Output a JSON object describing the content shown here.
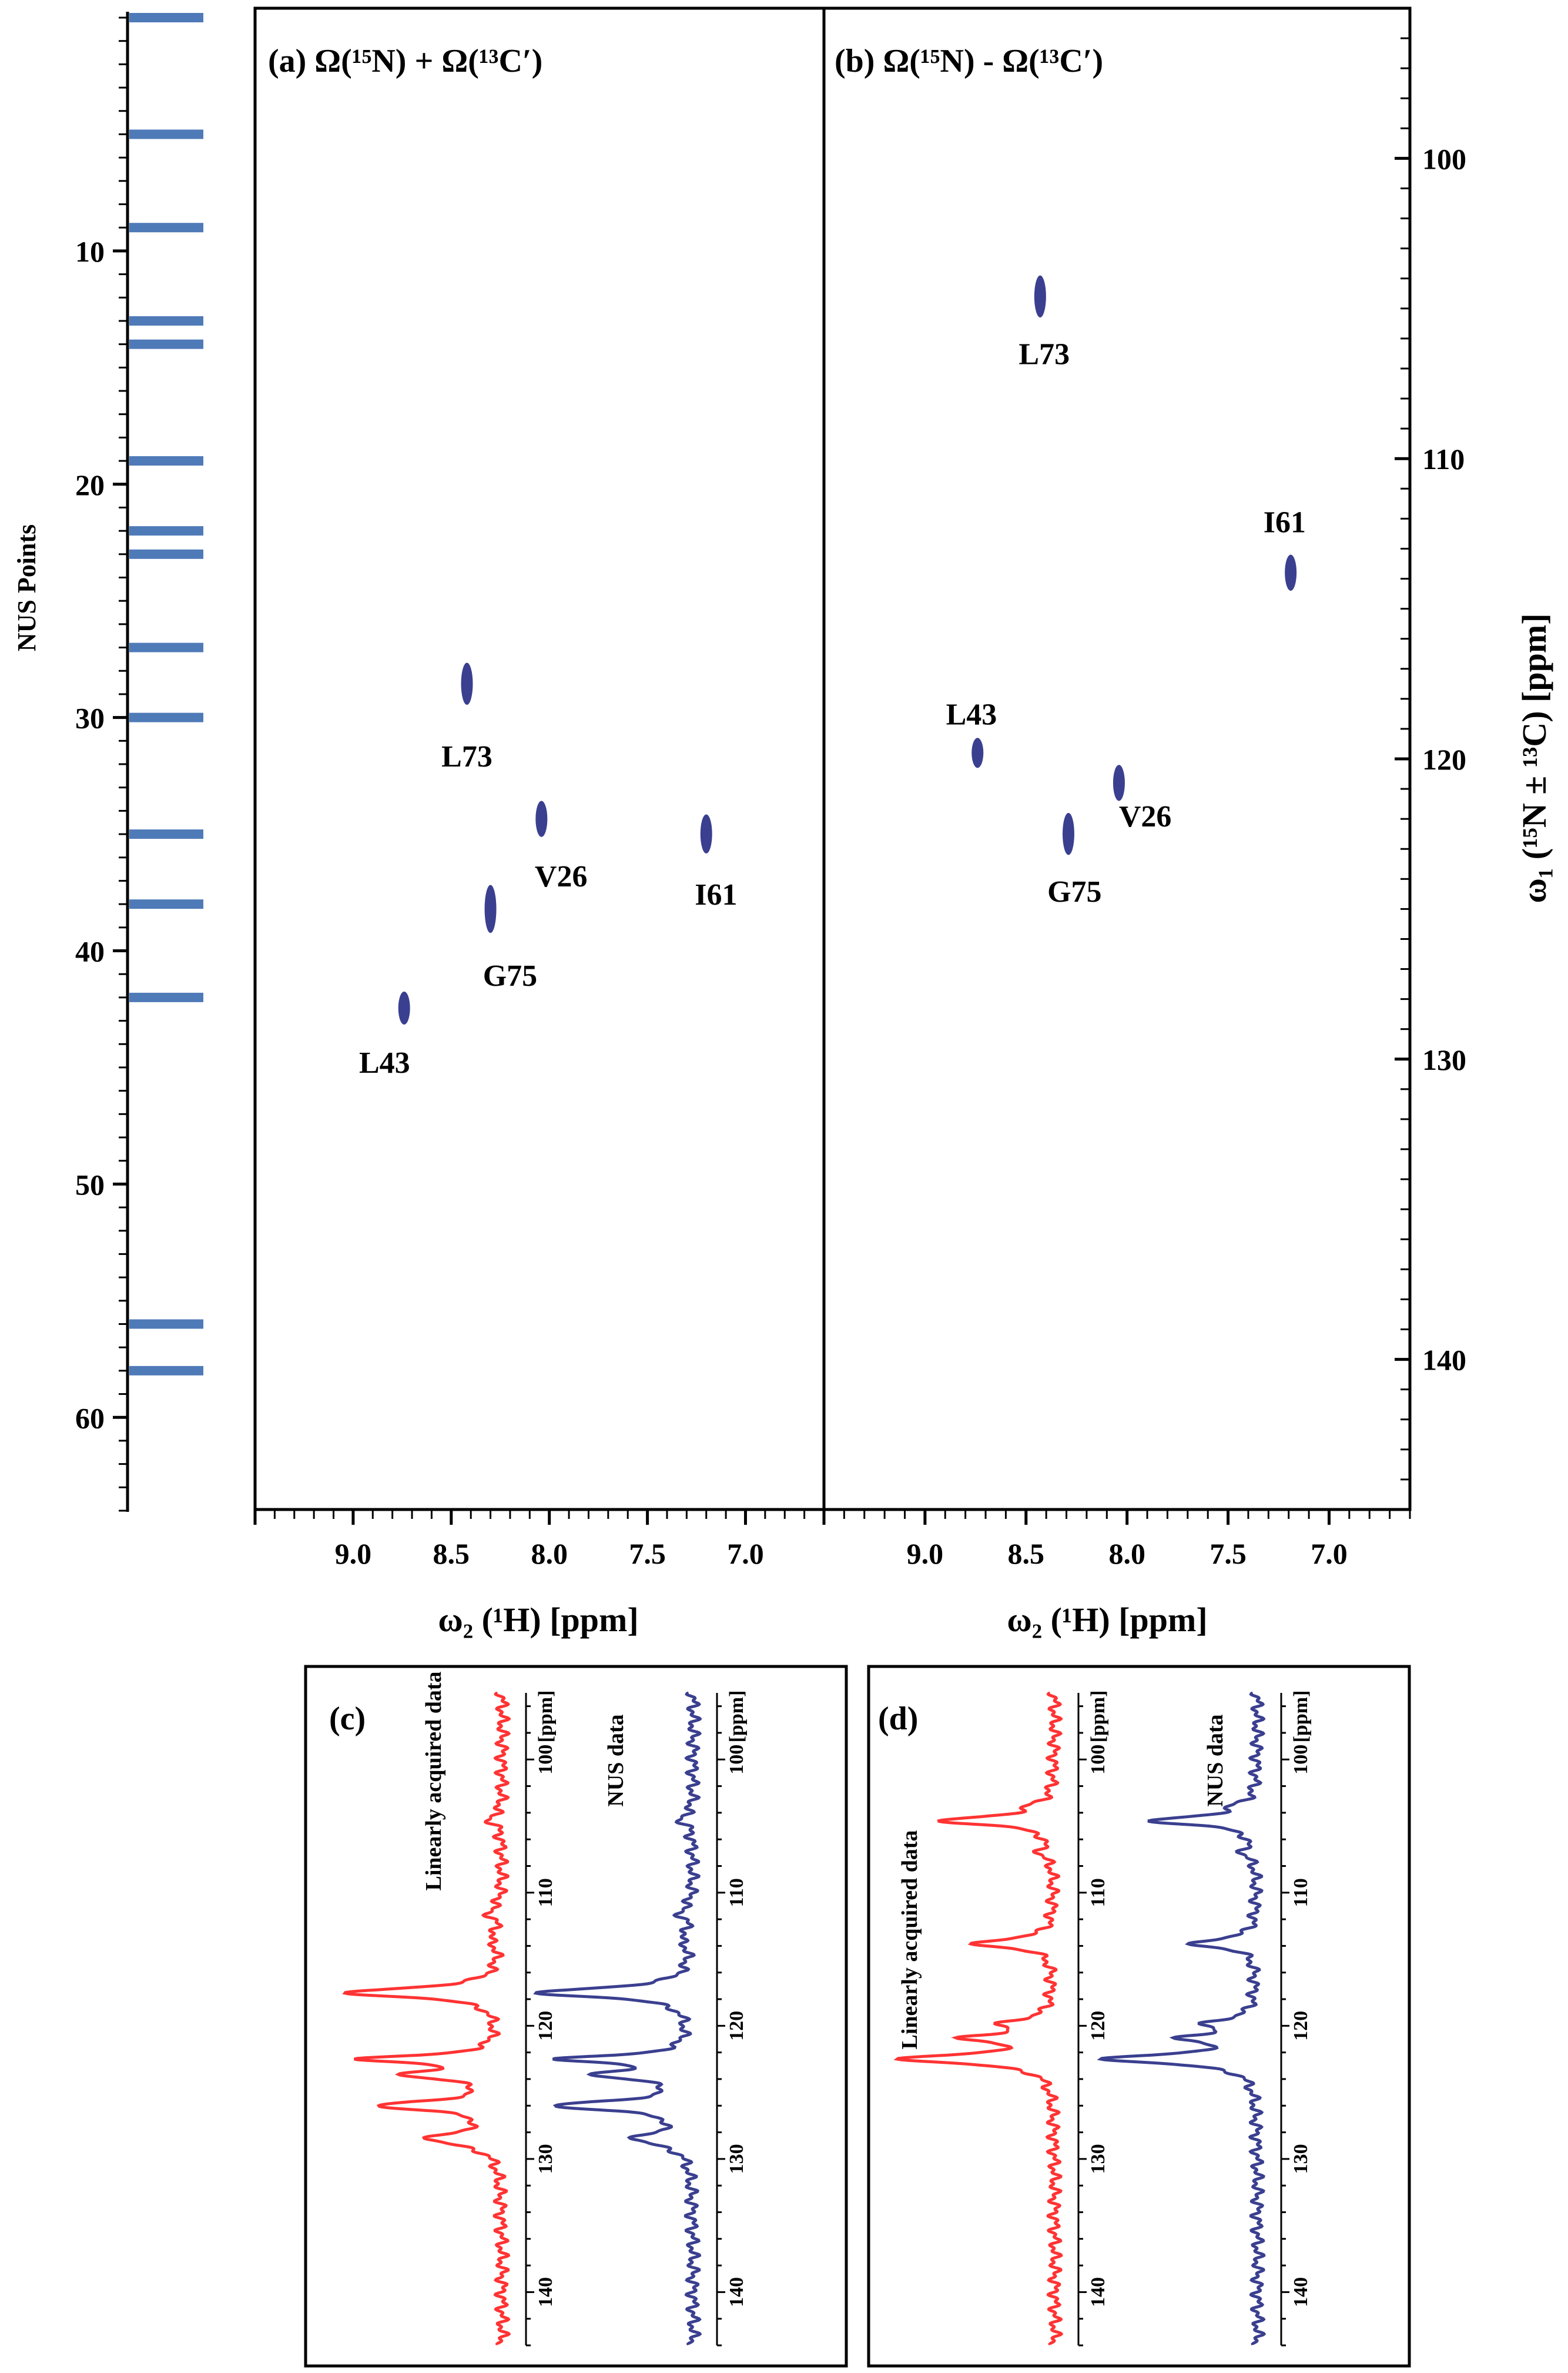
{
  "chart_data": [
    {
      "type": "bar",
      "name": "nus_schedule",
      "title": "NUS Points",
      "title_color": "#ff3333",
      "bar_color": "#4f7ab8",
      "ylim": [
        0,
        64
      ],
      "ticks": [
        10,
        20,
        30,
        40,
        50,
        60
      ],
      "points": [
        0,
        5,
        9,
        13,
        14,
        19,
        22,
        23,
        27,
        30,
        35,
        38,
        42,
        56,
        58
      ]
    },
    {
      "type": "scatter",
      "name": "panel_a",
      "title": "(a) Ω(¹⁵N) + Ω(¹³C′)",
      "xlabel": "ω₂ (¹H) [ppm]",
      "x_range": [
        9.5,
        6.6
      ],
      "x_ticks": [
        "9.0",
        "8.5",
        "8.0",
        "7.5",
        "7.0"
      ],
      "y_range": [
        95,
        145
      ],
      "peak_color": "#3a3f8f",
      "peaks": [
        {
          "label": "L73",
          "x": 8.42,
          "y": 117.5,
          "h": 1.4,
          "label_dx": 0.0,
          "label_dy": 2.4
        },
        {
          "label": "V26",
          "x": 8.04,
          "y": 122.0,
          "h": 1.2,
          "label_dx": -0.1,
          "label_dy": 1.9
        },
        {
          "label": "I61",
          "x": 7.2,
          "y": 122.5,
          "h": 1.3,
          "label_dx": -0.05,
          "label_dy": 2.0
        },
        {
          "label": "G75",
          "x": 8.3,
          "y": 125.0,
          "h": 1.6,
          "label_dx": -0.1,
          "label_dy": 2.2
        },
        {
          "label": "L43",
          "x": 8.74,
          "y": 128.3,
          "h": 1.1,
          "label_dx": 0.1,
          "label_dy": 1.8
        }
      ]
    },
    {
      "type": "scatter",
      "name": "panel_b",
      "title": "(b) Ω(¹⁵N) - Ω(¹³C′)",
      "xlabel": "ω₂ (¹H) [ppm]",
      "ylabel": "ω₁ (¹⁵N ± ¹³C) [ppm]",
      "x_range": [
        9.5,
        6.6
      ],
      "x_ticks": [
        "9.0",
        "8.5",
        "8.0",
        "7.5",
        "7.0"
      ],
      "y_range": [
        95,
        145
      ],
      "y_ticks": [
        "100",
        "110",
        "120",
        "130",
        "140"
      ],
      "peak_color": "#3a3f8f",
      "peaks": [
        {
          "label": "L73",
          "x": 8.43,
          "y": 104.6,
          "h": 1.4,
          "label_dx": -0.02,
          "label_dy": 1.9
        },
        {
          "label": "I61",
          "x": 7.19,
          "y": 113.8,
          "h": 1.2,
          "label_dx": 0.03,
          "label_dy": -1.7
        },
        {
          "label": "L43",
          "x": 8.74,
          "y": 119.8,
          "h": 1.0,
          "label_dx": 0.03,
          "label_dy": -1.3
        },
        {
          "label": "V26",
          "x": 8.04,
          "y": 120.8,
          "h": 1.2,
          "label_dx": -0.13,
          "label_dy": 1.1
        },
        {
          "label": "G75",
          "x": 8.29,
          "y": 122.5,
          "h": 1.4,
          "label_dx": -0.03,
          "label_dy": 1.9
        }
      ]
    },
    {
      "type": "line",
      "name": "panel_c",
      "title": "(c)",
      "axis_label": "[ppm]",
      "x_range": [
        95,
        144
      ],
      "x_ticks": [
        "100",
        "110",
        "120",
        "130",
        "140"
      ],
      "series": [
        {
          "name": "Linearly acquired data",
          "color": "#ff3333",
          "peaks": [
            {
              "x": 117.5,
              "h": 1.0,
              "w": 0.45
            },
            {
              "x": 122.5,
              "h": 0.85,
              "w": 0.35
            },
            {
              "x": 123.7,
              "h": 0.55,
              "w": 0.4
            },
            {
              "x": 126.0,
              "h": 0.75,
              "w": 0.45
            },
            {
              "x": 128.5,
              "h": 0.45,
              "w": 0.6
            },
            {
              "x": 104.5,
              "h": 0.08,
              "w": 0.5
            },
            {
              "x": 111.5,
              "h": 0.08,
              "w": 0.5
            },
            {
              "x": 113.5,
              "h": 0.06,
              "w": 0.5
            }
          ]
        },
        {
          "name": "NUS data",
          "color": "#3a3f8f",
          "peaks": [
            {
              "x": 117.5,
              "h": 1.0,
              "w": 0.45
            },
            {
              "x": 122.5,
              "h": 0.8,
              "w": 0.35
            },
            {
              "x": 123.7,
              "h": 0.55,
              "w": 0.4
            },
            {
              "x": 126.0,
              "h": 0.85,
              "w": 0.45
            },
            {
              "x": 128.5,
              "h": 0.35,
              "w": 0.6
            },
            {
              "x": 104.5,
              "h": 0.08,
              "w": 0.5
            },
            {
              "x": 111.5,
              "h": 0.08,
              "w": 0.5
            },
            {
              "x": 113.5,
              "h": 0.06,
              "w": 0.5
            }
          ]
        }
      ]
    },
    {
      "type": "line",
      "name": "panel_d",
      "title": "(d)",
      "axis_label": "[ppm]",
      "x_range": [
        95,
        144
      ],
      "x_ticks": [
        "100",
        "110",
        "120",
        "130",
        "140"
      ],
      "series": [
        {
          "name": "Linearly acquired data",
          "color": "#ff3333",
          "peaks": [
            {
              "x": 104.6,
              "h": 0.75,
              "w": 0.4
            },
            {
              "x": 113.8,
              "h": 0.55,
              "w": 0.4
            },
            {
              "x": 119.8,
              "h": 0.3,
              "w": 0.4
            },
            {
              "x": 120.9,
              "h": 0.55,
              "w": 0.35
            },
            {
              "x": 122.5,
              "h": 1.0,
              "w": 0.45
            },
            {
              "x": 103.5,
              "h": 0.1,
              "w": 0.4
            },
            {
              "x": 107.0,
              "h": 0.08,
              "w": 0.5
            }
          ]
        },
        {
          "name": "NUS data",
          "color": "#3a3f8f",
          "peaks": [
            {
              "x": 104.6,
              "h": 0.7,
              "w": 0.4
            },
            {
              "x": 113.8,
              "h": 0.45,
              "w": 0.4
            },
            {
              "x": 119.8,
              "h": 0.3,
              "w": 0.4
            },
            {
              "x": 120.9,
              "h": 0.45,
              "w": 0.35
            },
            {
              "x": 122.5,
              "h": 1.0,
              "w": 0.45
            },
            {
              "x": 103.5,
              "h": 0.1,
              "w": 0.4
            },
            {
              "x": 107.0,
              "h": 0.08,
              "w": 0.5
            }
          ]
        }
      ]
    }
  ]
}
